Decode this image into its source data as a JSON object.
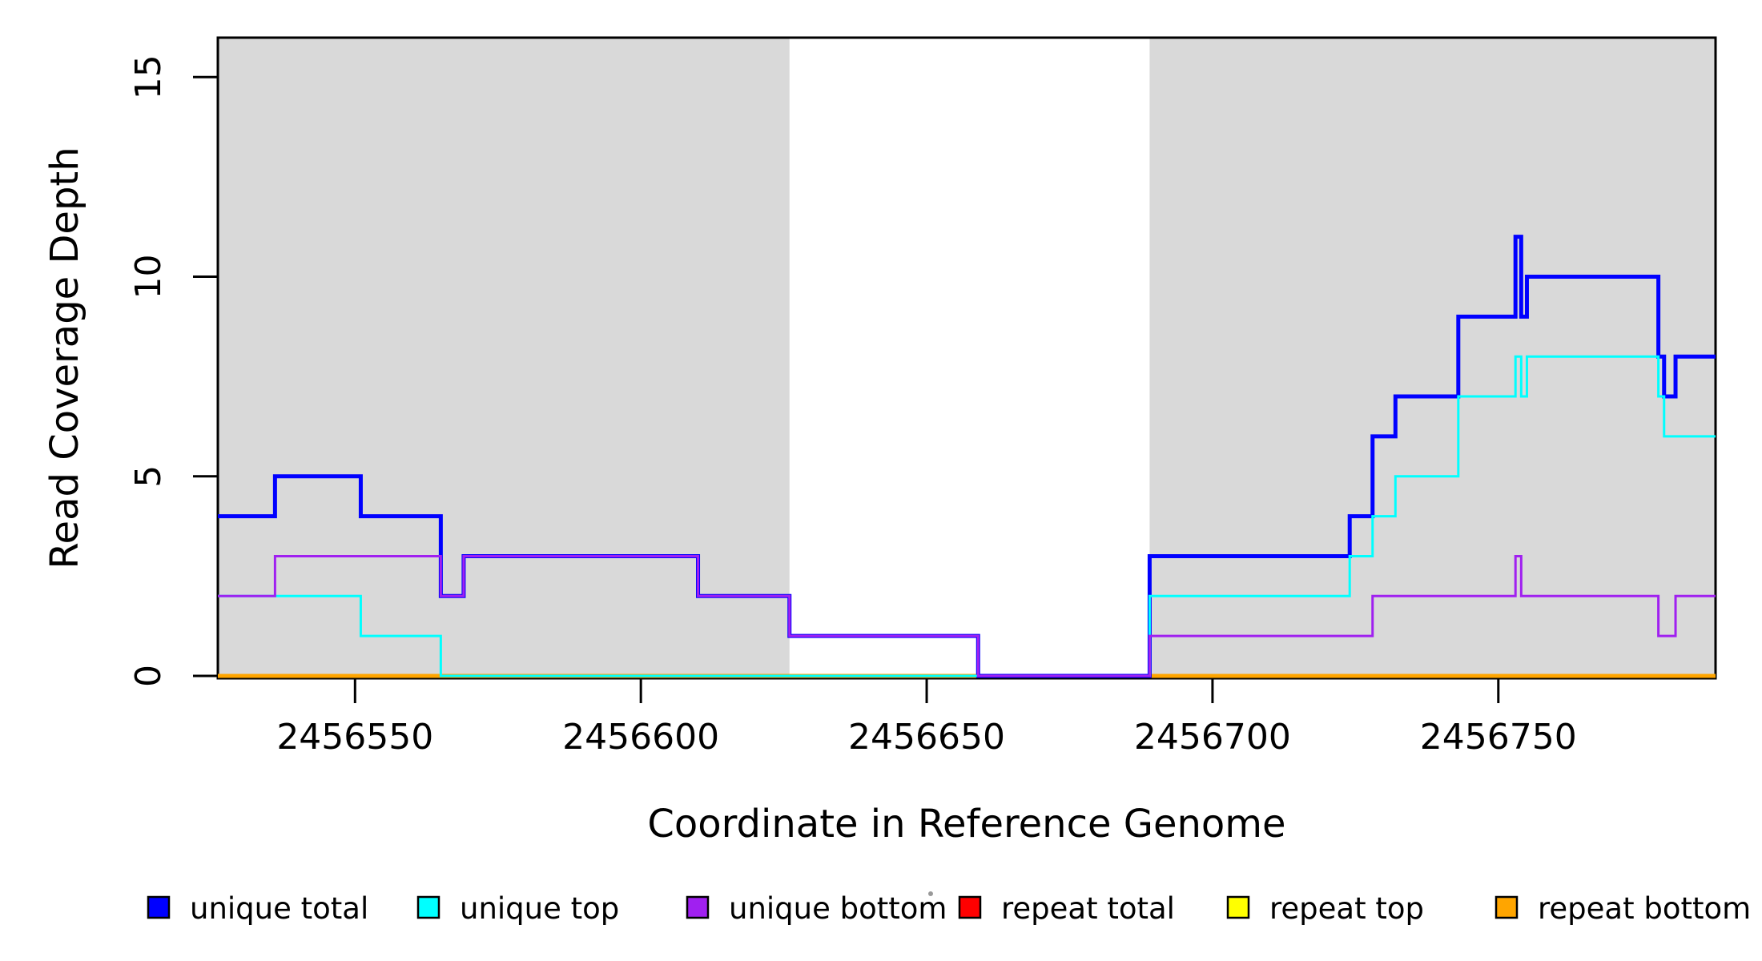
{
  "chart_data": {
    "type": "line",
    "subtype": "step-after-coverage",
    "title": "",
    "xlabel": "Coordinate in Reference Genome",
    "ylabel": "Read Coverage Depth",
    "xlim": [
      2456526,
      2456788
    ],
    "ylim": [
      0,
      16
    ],
    "xticks": [
      2456550,
      2456600,
      2456650,
      2456700,
      2456750
    ],
    "yticks": [
      0,
      5,
      10,
      15
    ],
    "grid": false,
    "legend_position": "bottom",
    "shaded_regions": [
      {
        "x0": 2456526,
        "x1": 2456626,
        "color": "#D9D9D9"
      },
      {
        "x0": 2456689,
        "x1": 2456788,
        "color": "#D9D9D9"
      }
    ],
    "series": [
      {
        "name": "unique total",
        "color": "#0000FF",
        "line_width": 5,
        "steps": [
          [
            2456526,
            4
          ],
          [
            2456536,
            5
          ],
          [
            2456551,
            4
          ],
          [
            2456565,
            2
          ],
          [
            2456569,
            3
          ],
          [
            2456610,
            2
          ],
          [
            2456626,
            1
          ],
          [
            2456659,
            0
          ],
          [
            2456689,
            3
          ],
          [
            2456724,
            4
          ],
          [
            2456728,
            6
          ],
          [
            2456732,
            7
          ],
          [
            2456743,
            9
          ],
          [
            2456753,
            11
          ],
          [
            2456754,
            9
          ],
          [
            2456755,
            10
          ],
          [
            2456778,
            8
          ],
          [
            2456779,
            7
          ],
          [
            2456781,
            8
          ]
        ]
      },
      {
        "name": "unique top",
        "color": "#00FFFF",
        "line_width": 3,
        "steps": [
          [
            2456526,
            2
          ],
          [
            2456551,
            1
          ],
          [
            2456565,
            0
          ],
          [
            2456689,
            2
          ],
          [
            2456724,
            3
          ],
          [
            2456728,
            4
          ],
          [
            2456732,
            5
          ],
          [
            2456743,
            7
          ],
          [
            2456753,
            8
          ],
          [
            2456754,
            7
          ],
          [
            2456755,
            8
          ],
          [
            2456778,
            7
          ],
          [
            2456779,
            6
          ]
        ]
      },
      {
        "name": "unique bottom",
        "color": "#A020F0",
        "line_width": 3,
        "steps": [
          [
            2456526,
            2
          ],
          [
            2456536,
            3
          ],
          [
            2456565,
            2
          ],
          [
            2456569,
            3
          ],
          [
            2456610,
            2
          ],
          [
            2456626,
            1
          ],
          [
            2456659,
            0
          ],
          [
            2456689,
            1
          ],
          [
            2456728,
            2
          ],
          [
            2456753,
            3
          ],
          [
            2456754,
            2
          ],
          [
            2456778,
            1
          ],
          [
            2456781,
            2
          ]
        ]
      },
      {
        "name": "repeat total",
        "color": "#FF0000",
        "line_width": 5,
        "steps": [
          [
            2456526,
            0
          ]
        ]
      },
      {
        "name": "repeat top",
        "color": "#FFFF00",
        "line_width": 5,
        "steps": [
          [
            2456526,
            0
          ]
        ]
      },
      {
        "name": "repeat bottom",
        "color": "#FFA500",
        "line_width": 5,
        "steps": [
          [
            2456526,
            0
          ]
        ]
      }
    ],
    "draw_order": [
      3,
      4,
      5,
      0,
      1,
      2
    ]
  }
}
